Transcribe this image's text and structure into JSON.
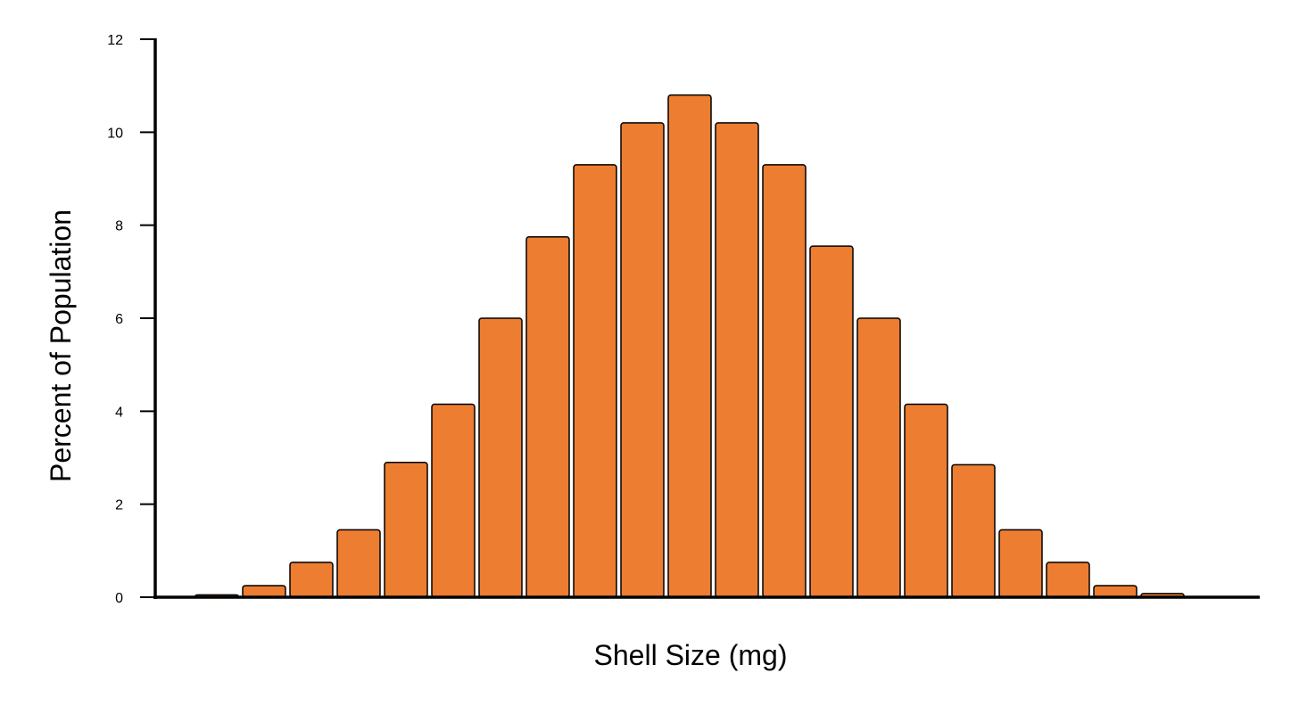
{
  "chart_data": {
    "type": "bar",
    "title": "",
    "xlabel": "Shell Size (mg)",
    "ylabel": "Percent of Population",
    "ylim": [
      0,
      12
    ],
    "yticks": [
      0,
      2,
      4,
      6,
      8,
      10,
      12
    ],
    "grid": false,
    "legend": "none",
    "bar_color": "#ED7D31",
    "bar_outline_color": "#000000",
    "values": [
      0.05,
      0.25,
      0.75,
      1.45,
      2.9,
      4.15,
      6.0,
      7.75,
      9.3,
      10.2,
      10.8,
      10.2,
      9.3,
      7.55,
      6.0,
      4.15,
      2.85,
      1.45,
      0.75,
      0.25,
      0.08
    ]
  }
}
